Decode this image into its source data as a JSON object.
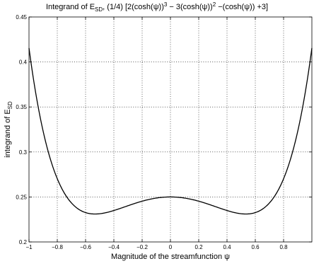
{
  "chart_data": {
    "type": "line",
    "title": "Integrand of E_SD, (1/4) [2(cosh(ψ))^3 − 3(cosh(ψ))^2 −(cosh(ψ)) +3]",
    "title_parts": {
      "pre": "Integrand of E",
      "sub": "SD",
      "mid1": ", (1/4) [2(cosh(ψ))",
      "sup1": "3",
      "mid2": " − 3(cosh(ψ))",
      "sup2": "2",
      "mid3": " −(cosh(ψ)) +3]"
    },
    "xlabel": "Magnitude of the streamfunction ψ",
    "ylabel_parts": {
      "pre": "integrand of E",
      "sub": "SD"
    },
    "xlim": [
      -1,
      1
    ],
    "ylim": [
      0.2,
      0.45
    ],
    "x_ticks": [
      -1,
      -0.8,
      -0.6,
      -0.4,
      -0.2,
      0,
      0.2,
      0.4,
      0.6,
      0.8
    ],
    "x_tick_labels": [
      "−1",
      "−0.8",
      "−0.6",
      "−0.4",
      "−0.2",
      "0",
      "0.2",
      "0.4",
      "0.6",
      "0.8"
    ],
    "y_ticks": [
      0.2,
      0.25,
      0.3,
      0.35,
      0.4,
      0.45
    ],
    "y_tick_labels": [
      "0.2",
      "0.25",
      "0.3",
      "0.35",
      "0.4",
      "0.45"
    ],
    "grid": true,
    "series": [
      {
        "function": "(1/4)*(2*cosh(x)^3 - 3*cosh(x)^2 - cosh(x) + 3)",
        "x_range": [
          -1,
          1
        ],
        "color": "#000000"
      }
    ]
  }
}
